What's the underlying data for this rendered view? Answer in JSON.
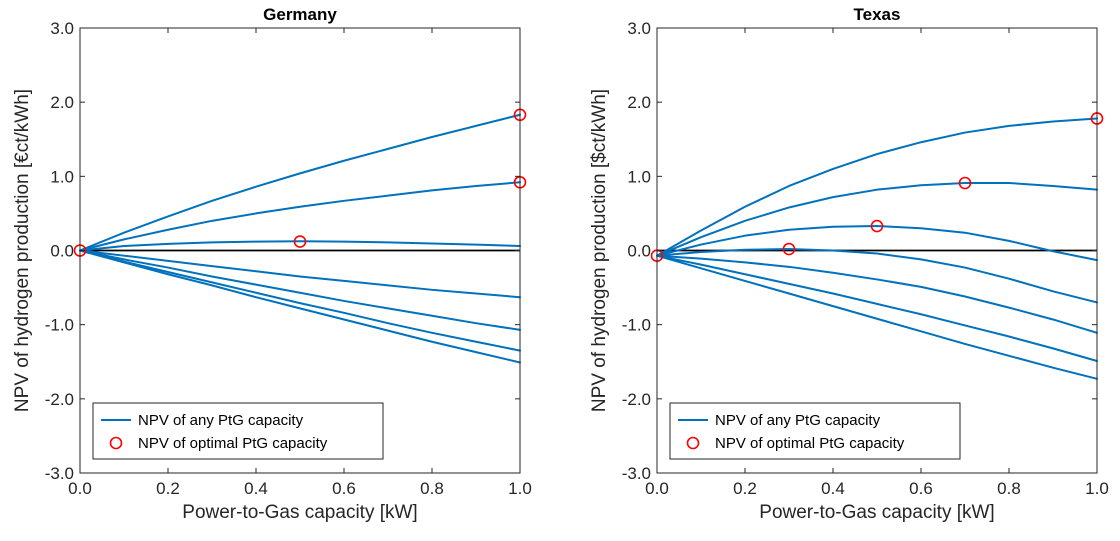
{
  "chart_data": [
    {
      "type": "line",
      "title": "Germany",
      "xlabel": "Power-to-Gas capacity [kW]",
      "ylabel": "NPV of hydrogen production [€ct/kWh]",
      "xlim": [
        0,
        1
      ],
      "ylim": [
        -3,
        3
      ],
      "xticks": [
        "0.0",
        "0.2",
        "0.4",
        "0.6",
        "0.8",
        "1.0"
      ],
      "yticks": [
        "-3.0",
        "-2.0",
        "-1.0",
        "0.0",
        "1.0",
        "2.0",
        "3.0"
      ],
      "grid": false,
      "reference_line_y": 0,
      "legend": {
        "placement": "bottom-left",
        "entries": [
          "NPV of any PtG capacity",
          "NPV of optimal PtG capacity"
        ]
      },
      "colors": {
        "line": "#0072BD",
        "marker": "#FF0000",
        "reference": "#000000"
      },
      "x": [
        0,
        0.1,
        0.2,
        0.3,
        0.4,
        0.5,
        0.6,
        0.7,
        0.8,
        0.9,
        1.0
      ],
      "series": [
        {
          "values": [
            0,
            0.24,
            0.46,
            0.67,
            0.86,
            1.04,
            1.21,
            1.37,
            1.53,
            1.68,
            1.83
          ]
        },
        {
          "values": [
            0,
            0.15,
            0.28,
            0.4,
            0.5,
            0.59,
            0.67,
            0.74,
            0.81,
            0.87,
            0.92
          ]
        },
        {
          "values": [
            0,
            0.06,
            0.09,
            0.11,
            0.12,
            0.125,
            0.12,
            0.11,
            0.095,
            0.08,
            0.06
          ]
        },
        {
          "values": [
            0,
            -0.07,
            -0.14,
            -0.21,
            -0.28,
            -0.35,
            -0.41,
            -0.47,
            -0.53,
            -0.58,
            -0.63
          ]
        },
        {
          "values": [
            0,
            -0.12,
            -0.23,
            -0.35,
            -0.46,
            -0.57,
            -0.68,
            -0.78,
            -0.88,
            -0.98,
            -1.07
          ]
        },
        {
          "values": [
            0,
            -0.15,
            -0.29,
            -0.43,
            -0.57,
            -0.71,
            -0.84,
            -0.98,
            -1.11,
            -1.23,
            -1.35
          ]
        },
        {
          "values": [
            0,
            -0.16,
            -0.32,
            -0.47,
            -0.63,
            -0.78,
            -0.93,
            -1.08,
            -1.23,
            -1.37,
            -1.51
          ]
        }
      ],
      "optimal_points": [
        {
          "x": 0.0,
          "y": 0.0
        },
        {
          "x": 0.5,
          "y": 0.12
        },
        {
          "x": 1.0,
          "y": 0.92
        },
        {
          "x": 1.0,
          "y": 1.83
        }
      ]
    },
    {
      "type": "line",
      "title": "Texas",
      "xlabel": "Power-to-Gas capacity [kW]",
      "ylabel": "NPV of hydrogen production [$ct/kWh]",
      "xlim": [
        0,
        1
      ],
      "ylim": [
        -3,
        3
      ],
      "xticks": [
        "0.0",
        "0.2",
        "0.4",
        "0.6",
        "0.8",
        "1.0"
      ],
      "yticks": [
        "-3.0",
        "-2.0",
        "-1.0",
        "0.0",
        "1.0",
        "2.0",
        "3.0"
      ],
      "grid": false,
      "reference_line_y": 0,
      "legend": {
        "placement": "bottom-left",
        "entries": [
          "NPV of any PtG capacity",
          "NPV of optimal PtG capacity"
        ]
      },
      "colors": {
        "line": "#0072BD",
        "marker": "#FF0000",
        "reference": "#000000"
      },
      "x": [
        0,
        0.1,
        0.2,
        0.3,
        0.4,
        0.5,
        0.6,
        0.7,
        0.8,
        0.9,
        1.0
      ],
      "series": [
        {
          "values": [
            -0.07,
            0.27,
            0.59,
            0.87,
            1.1,
            1.3,
            1.46,
            1.59,
            1.68,
            1.74,
            1.78
          ]
        },
        {
          "values": [
            -0.07,
            0.18,
            0.4,
            0.58,
            0.72,
            0.82,
            0.88,
            0.91,
            0.91,
            0.87,
            0.82
          ]
        },
        {
          "values": [
            -0.07,
            0.08,
            0.2,
            0.28,
            0.32,
            0.33,
            0.3,
            0.24,
            0.13,
            -0.01,
            -0.13
          ]
        },
        {
          "values": [
            -0.07,
            -0.02,
            0.01,
            0.02,
            0.0,
            -0.04,
            -0.12,
            -0.23,
            -0.38,
            -0.55,
            -0.7
          ]
        },
        {
          "values": [
            -0.07,
            -0.11,
            -0.16,
            -0.22,
            -0.3,
            -0.39,
            -0.49,
            -0.62,
            -0.77,
            -0.93,
            -1.11
          ]
        },
        {
          "values": [
            -0.07,
            -0.19,
            -0.32,
            -0.45,
            -0.58,
            -0.72,
            -0.86,
            -1.01,
            -1.16,
            -1.32,
            -1.49
          ]
        },
        {
          "values": [
            -0.07,
            -0.24,
            -0.41,
            -0.58,
            -0.75,
            -0.92,
            -1.09,
            -1.26,
            -1.42,
            -1.58,
            -1.73
          ]
        }
      ],
      "optimal_points": [
        {
          "x": 0.0,
          "y": -0.07
        },
        {
          "x": 0.3,
          "y": 0.02
        },
        {
          "x": 0.5,
          "y": 0.33
        },
        {
          "x": 0.7,
          "y": 0.91
        },
        {
          "x": 1.0,
          "y": 1.78
        }
      ]
    }
  ]
}
